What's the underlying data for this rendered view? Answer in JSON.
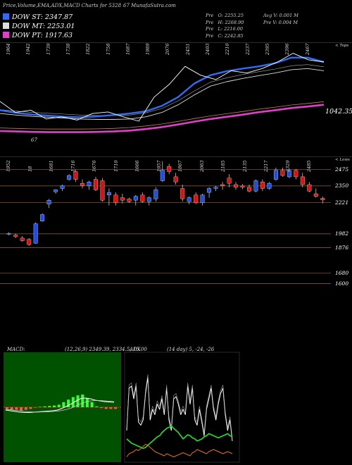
{
  "header": {
    "title": "Price,Volume,EMA,ADX,MACD Charts for 5328",
    "title2": "67 MunafaSutra.com"
  },
  "legend": [
    {
      "label": "DOW ST: 2347.87",
      "color": "#2f6cf2"
    },
    {
      "label": "DOW MT: 2253.01",
      "color": "#dddddd"
    },
    {
      "label": "DOW PT: 1917.63",
      "color": "#e040c8"
    }
  ],
  "info": {
    "pre": "Pre",
    "o": "O: 2255.25",
    "h": "H: 2268.90",
    "l": "L: 2216.00",
    "c": "C: 2242.85",
    "avgv": "Avg V: 0.001 M",
    "prev": "Pre  V: 0.004  M"
  },
  "colors": {
    "up": "#1f4fe0",
    "down": "#e01010",
    "ema_st": "#2f6cf2",
    "ema_pt": "#e040c8",
    "adx_plus": "#22dd22",
    "adx_minus": "#e07010"
  },
  "chart_data": [
    {
      "type": "line",
      "title": "EMA panel",
      "edge_label": "< Tops",
      "last_value_label": "1042.35",
      "top_labels": [
        "1964",
        "1942",
        "1739",
        "1738",
        "1822",
        "1758",
        "1687",
        "1989",
        "2076",
        "2451",
        "2403",
        "2210",
        "2237",
        "2395",
        "2396",
        "2467"
      ],
      "bottom_labels": [
        "67"
      ],
      "series": [
        {
          "name": "DOW ST",
          "values": [
            1140,
            1128,
            1120,
            1115,
            1110,
            1108,
            1112,
            1118,
            1125,
            1135,
            1160,
            1200,
            1262,
            1300,
            1318,
            1330,
            1340,
            1355,
            1380,
            1380,
            1360
          ]
        },
        {
          "name": "DOW MT",
          "values": [
            1125,
            1118,
            1112,
            1108,
            1104,
            1100,
            1098,
            1098,
            1100,
            1110,
            1130,
            1165,
            1210,
            1250,
            1270,
            1285,
            1298,
            1310,
            1325,
            1330,
            1320
          ]
        },
        {
          "name": "DOW PT",
          "values": [
            1045,
            1043,
            1041,
            1040,
            1040,
            1040,
            1041,
            1043,
            1047,
            1054,
            1063,
            1075,
            1088,
            1100,
            1110,
            1120,
            1131,
            1140,
            1150,
            1157,
            1165
          ]
        }
      ],
      "price": [
        1180,
        1130,
        1140,
        1100,
        1110,
        1095,
        1125,
        1132,
        1110,
        1090,
        1200,
        1260,
        1340,
        1300,
        1280,
        1320,
        1310,
        1330,
        1360,
        1400,
        1370,
        1360
      ]
    },
    {
      "type": "candlestick",
      "title": "Price panel",
      "edge_label": "< Lows",
      "y_labels": [
        "2475",
        "2350",
        "2221",
        "1982",
        "1876",
        "1680",
        "1600"
      ],
      "top_labels": [
        "1952",
        "18",
        "1681",
        "1716",
        "1676",
        "1710",
        "1666",
        "1957",
        "1867",
        "2063",
        "2185",
        "2135",
        "2217",
        "2329",
        "2485"
      ],
      "ylim": [
        1560,
        2560
      ],
      "candles": [
        {
          "o": 1980,
          "h": 1995,
          "l": 1970,
          "c": 1985
        },
        {
          "o": 1972,
          "h": 1985,
          "l": 1950,
          "c": 1960
        },
        {
          "o": 1950,
          "h": 1965,
          "l": 1920,
          "c": 1930
        },
        {
          "o": 1940,
          "h": 1950,
          "l": 1890,
          "c": 1900
        },
        {
          "o": 1910,
          "h": 2070,
          "l": 1905,
          "c": 2060
        },
        {
          "o": 2080,
          "h": 2140,
          "l": 2075,
          "c": 2130
        },
        {
          "o": 2210,
          "h": 2250,
          "l": 2180,
          "c": 2240
        },
        {
          "o": 2305,
          "h": 2325,
          "l": 2290,
          "c": 2320
        },
        {
          "o": 2330,
          "h": 2360,
          "l": 2310,
          "c": 2350
        },
        {
          "o": 2400,
          "h": 2440,
          "l": 2390,
          "c": 2430
        },
        {
          "o": 2460,
          "h": 2475,
          "l": 2380,
          "c": 2400
        },
        {
          "o": 2370,
          "h": 2400,
          "l": 2330,
          "c": 2350
        },
        {
          "o": 2350,
          "h": 2390,
          "l": 2320,
          "c": 2380
        },
        {
          "o": 2400,
          "h": 2420,
          "l": 2310,
          "c": 2320
        },
        {
          "o": 2390,
          "h": 2410,
          "l": 2230,
          "c": 2240
        },
        {
          "o": 2280,
          "h": 2330,
          "l": 2200,
          "c": 2300
        },
        {
          "o": 2280,
          "h": 2300,
          "l": 2200,
          "c": 2220
        },
        {
          "o": 2260,
          "h": 2290,
          "l": 2215,
          "c": 2240
        },
        {
          "o": 2250,
          "h": 2260,
          "l": 2220,
          "c": 2230
        },
        {
          "o": 2240,
          "h": 2280,
          "l": 2200,
          "c": 2270
        },
        {
          "o": 2280,
          "h": 2300,
          "l": 2220,
          "c": 2230
        },
        {
          "o": 2230,
          "h": 2270,
          "l": 2200,
          "c": 2260
        },
        {
          "o": 2250,
          "h": 2340,
          "l": 2230,
          "c": 2320
        },
        {
          "o": 2390,
          "h": 2540,
          "l": 2380,
          "c": 2470
        },
        {
          "o": 2500,
          "h": 2520,
          "l": 2440,
          "c": 2460
        },
        {
          "o": 2420,
          "h": 2450,
          "l": 2360,
          "c": 2380
        },
        {
          "o": 2330,
          "h": 2360,
          "l": 2230,
          "c": 2250
        },
        {
          "o": 2230,
          "h": 2270,
          "l": 2210,
          "c": 2260
        },
        {
          "o": 2280,
          "h": 2300,
          "l": 2210,
          "c": 2220
        },
        {
          "o": 2220,
          "h": 2290,
          "l": 2200,
          "c": 2280
        },
        {
          "o": 2300,
          "h": 2340,
          "l": 2260,
          "c": 2330
        },
        {
          "o": 2330,
          "h": 2350,
          "l": 2310,
          "c": 2340
        },
        {
          "o": 2360,
          "h": 2380,
          "l": 2320,
          "c": 2350
        },
        {
          "o": 2410,
          "h": 2440,
          "l": 2340,
          "c": 2370
        },
        {
          "o": 2360,
          "h": 2380,
          "l": 2320,
          "c": 2340
        },
        {
          "o": 2350,
          "h": 2365,
          "l": 2325,
          "c": 2340
        },
        {
          "o": 2340,
          "h": 2360,
          "l": 2300,
          "c": 2310
        },
        {
          "o": 2310,
          "h": 2400,
          "l": 2300,
          "c": 2390
        },
        {
          "o": 2380,
          "h": 2400,
          "l": 2310,
          "c": 2330
        },
        {
          "o": 2330,
          "h": 2380,
          "l": 2320,
          "c": 2370
        },
        {
          "o": 2400,
          "h": 2490,
          "l": 2390,
          "c": 2470
        },
        {
          "o": 2470,
          "h": 2490,
          "l": 2420,
          "c": 2430
        },
        {
          "o": 2420,
          "h": 2480,
          "l": 2410,
          "c": 2470
        },
        {
          "o": 2470,
          "h": 2480,
          "l": 2400,
          "c": 2420
        },
        {
          "o": 2420,
          "h": 2450,
          "l": 2340,
          "c": 2360
        },
        {
          "o": 2360,
          "h": 2380,
          "l": 2300,
          "c": 2310
        },
        {
          "o": 2290,
          "h": 2330,
          "l": 2260,
          "c": 2270
        },
        {
          "o": 2255.25,
          "h": 2268.9,
          "l": 2216,
          "c": 2242.85
        }
      ]
    },
    {
      "type": "line",
      "title": "MACD",
      "header": "MACD:",
      "params": "(12,26,9) 2349.39,  2334.5,  15.00",
      "macd": [
        -0.8,
        -1.0,
        -1.2,
        -1.4,
        -1.5,
        -1.5,
        -1.4,
        -1.3,
        -1.2,
        -1.1,
        -1.0,
        -0.8,
        -0.3,
        0.3,
        1.0,
        1.8,
        2.5,
        2.6,
        2.4,
        2.0,
        1.8,
        1.6,
        1.5,
        1.4
      ],
      "signal": [
        -0.6,
        -0.7,
        -0.9,
        -1.0,
        -1.2,
        -1.3,
        -1.35,
        -1.35,
        -1.3,
        -1.25,
        -1.2,
        -1.1,
        -0.9,
        -0.6,
        -0.2,
        0.4,
        1.0,
        1.5,
        1.8,
        1.9,
        1.9,
        1.8,
        1.7,
        1.6
      ]
    },
    {
      "type": "line",
      "title": "ADX",
      "header": "ADX",
      "params": "(14 day) 5,  -24,  -26",
      "adx": [
        30,
        70,
        72,
        60,
        72,
        38,
        35,
        40,
        65,
        80,
        40,
        50,
        45,
        55,
        50,
        60,
        45,
        70,
        40,
        30,
        60,
        62,
        55,
        45,
        50,
        45,
        72,
        55,
        70,
        40,
        35,
        50,
        38,
        25,
        50,
        60,
        70,
        50,
        40,
        55,
        65,
        70,
        45,
        30,
        40,
        20
      ],
      "plus_di": [
        22,
        20,
        18,
        17,
        16,
        15,
        14,
        13,
        14,
        16,
        18,
        20,
        22,
        24,
        25,
        28,
        30,
        32,
        33,
        34,
        32,
        30,
        28,
        25,
        22,
        24,
        26,
        25,
        23,
        22,
        20,
        21,
        22,
        24,
        25,
        27,
        26,
        25,
        24,
        23,
        24,
        25,
        26,
        27,
        25,
        24
      ],
      "minus_di": [
        5,
        8,
        9,
        10,
        12,
        11,
        13,
        15,
        17,
        16,
        14,
        12,
        10,
        9,
        8,
        7,
        6,
        8,
        7,
        6,
        5,
        6,
        7,
        8,
        9,
        8,
        7,
        6,
        9,
        10,
        12,
        11,
        10,
        9,
        8,
        10,
        11,
        12,
        11,
        10,
        9,
        8,
        9,
        10,
        9,
        8
      ]
    }
  ]
}
